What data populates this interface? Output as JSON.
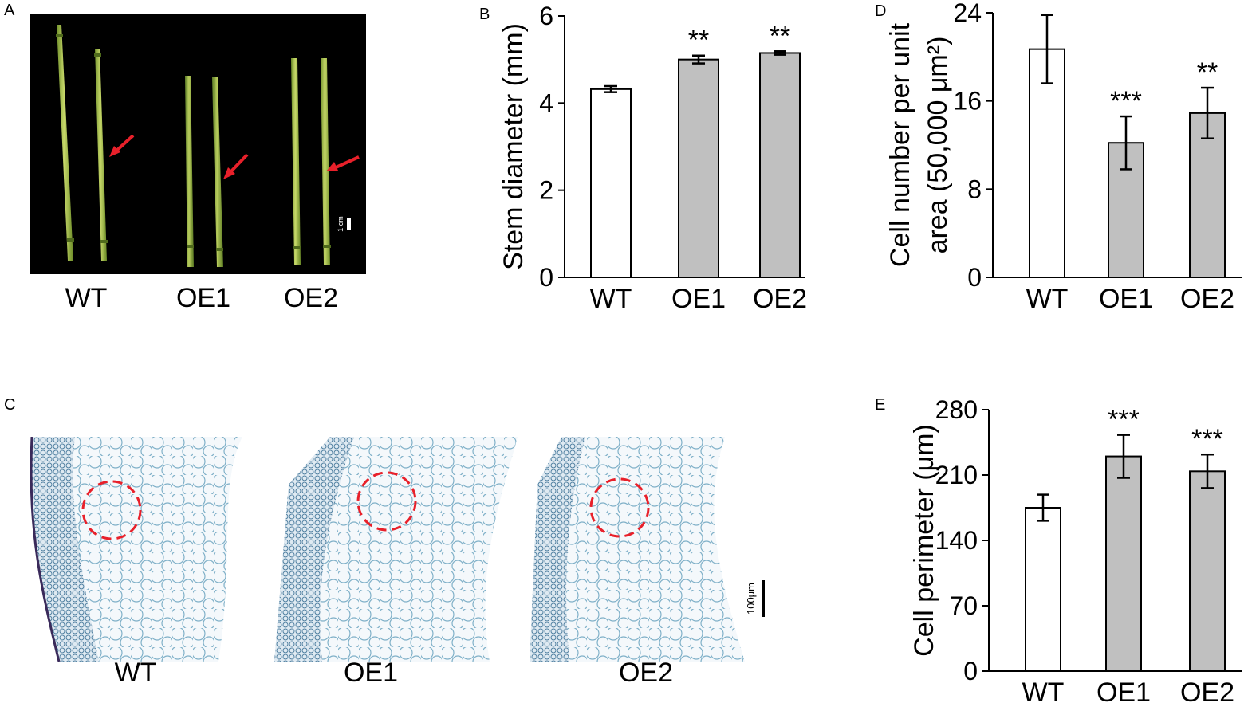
{
  "panels": {
    "A": {
      "letter": "A",
      "labels": [
        "WT",
        "OE1",
        "OE2"
      ],
      "scale_label": "1 cm"
    },
    "C": {
      "letter": "C",
      "labels": [
        "WT",
        "OE1",
        "OE2"
      ],
      "scale_label": "100μm"
    }
  },
  "colors": {
    "wt_bar": "#ffffff",
    "oe_bar": "#c0c0c0",
    "arrow": "#e8202a",
    "circle": "#e8202a",
    "photo_bg": "#000000"
  },
  "chart_data": [
    {
      "panel": "B",
      "type": "bar",
      "categories": [
        "WT",
        "OE1",
        "OE2"
      ],
      "values": [
        4.32,
        5.0,
        5.15
      ],
      "errors": [
        0.07,
        0.09,
        0.04
      ],
      "significance": [
        "",
        "**",
        "**"
      ],
      "ylabel": "Stem diameter (mm)",
      "ylim": [
        0,
        6
      ],
      "yticks": [
        "0",
        "2",
        "4",
        "6"
      ],
      "grid": false
    },
    {
      "panel": "D",
      "type": "bar",
      "categories": [
        "WT",
        "OE1",
        "OE2"
      ],
      "values": [
        20.7,
        12.2,
        14.9
      ],
      "errors": [
        3.1,
        2.4,
        2.3
      ],
      "significance": [
        "",
        "***",
        "**"
      ],
      "ylabel": "Cell number per unit area (50,000 μm²)",
      "ylabel_lines": [
        "Cell number per unit",
        "area (50,000 μm²)"
      ],
      "ylim": [
        0,
        24
      ],
      "yticks": [
        "0",
        "8",
        "16",
        "24"
      ],
      "grid": false
    },
    {
      "panel": "E",
      "type": "bar",
      "categories": [
        "WT",
        "OE1",
        "OE2"
      ],
      "values": [
        175,
        230,
        214
      ],
      "errors": [
        14,
        23,
        18
      ],
      "significance": [
        "",
        "***",
        "***"
      ],
      "ylabel": "Cell perimeter (μm)",
      "ylim": [
        0,
        280
      ],
      "yticks": [
        "0",
        "70",
        "140",
        "210",
        "280"
      ],
      "grid": false
    }
  ]
}
